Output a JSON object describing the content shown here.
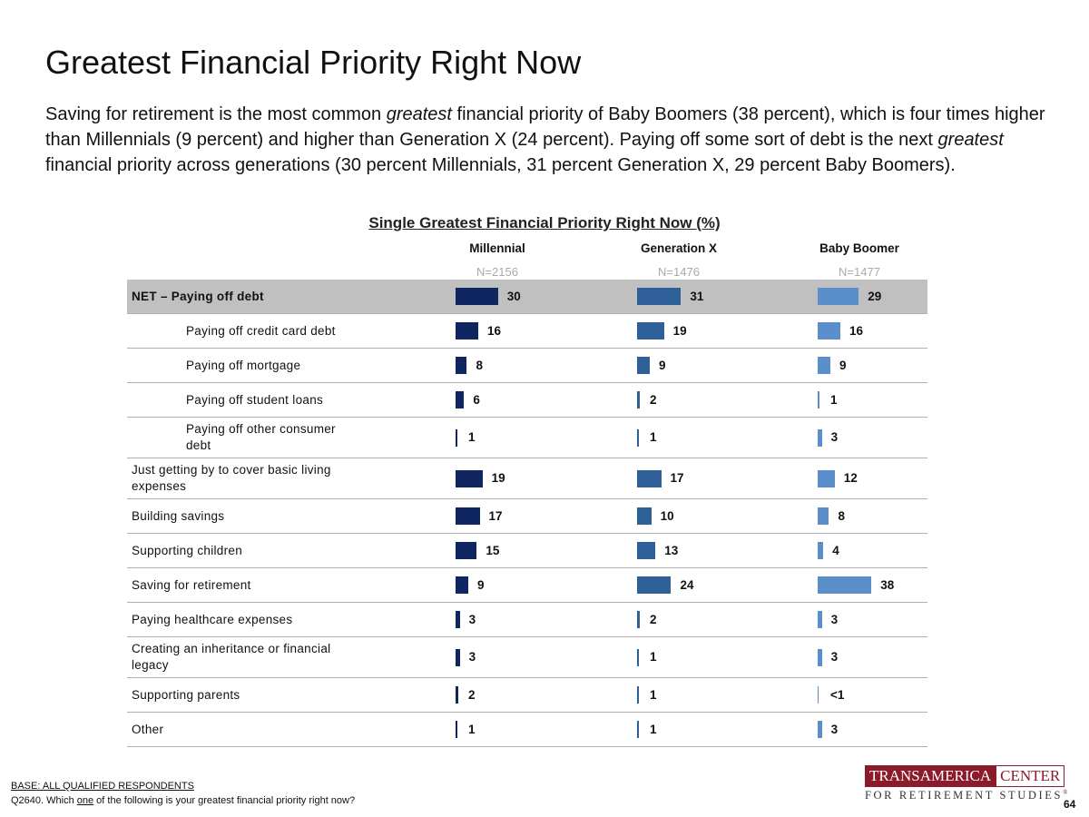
{
  "chart_data": {
    "type": "bar",
    "title": "Greatest Financial Priority Right Now",
    "description": [
      "Saving for retirement is the most common ",
      "greatest",
      " financial priority of Baby Boomers (38 percent), which is four times higher than Millennials (9 percent) and higher than Generation X (24 percent). Paying off some sort of debt is the next ",
      "greatest",
      " financial priority across generations (30 percent Millennials, 31 percent Generation X, 29 percent Baby Boomers)."
    ],
    "chart_title": "Single Greatest Financial Priority Right Now (%)",
    "categories": [
      "NET – Paying off debt",
      "Paying off credit card debt",
      "Paying off mortgage",
      "Paying off student loans",
      "Paying off other consumer debt",
      "Just getting by to cover basic living expenses",
      "Building savings",
      "Supporting children",
      "Saving for retirement",
      "Paying healthcare expenses",
      "Creating an inheritance or financial legacy",
      "Supporting parents",
      "Other"
    ],
    "indented": [
      false,
      true,
      true,
      true,
      true,
      false,
      false,
      false,
      false,
      false,
      false,
      false,
      false
    ],
    "highlight_row": 0,
    "series": [
      {
        "name": "Millennial",
        "sample": "N=2156",
        "color": "#0f2660",
        "values": [
          30,
          16,
          8,
          6,
          1,
          19,
          17,
          15,
          9,
          3,
          3,
          2,
          1
        ]
      },
      {
        "name": "Generation X",
        "sample": "N=1476",
        "color": "#2e5f99",
        "values": [
          31,
          19,
          9,
          2,
          1,
          17,
          10,
          13,
          24,
          2,
          1,
          1,
          1
        ]
      },
      {
        "name": "Baby Boomer",
        "sample": "N=1477",
        "color": "#5b8fcc",
        "values": [
          29,
          16,
          9,
          1,
          3,
          12,
          8,
          4,
          38,
          3,
          3,
          0.5,
          3
        ],
        "value_labels": [
          "29",
          "16",
          "9",
          "1",
          "3",
          "12",
          "8",
          "4",
          "38",
          "3",
          "3",
          "<1",
          "3"
        ]
      }
    ],
    "base_note": "BASE: ALL QUALIFIED RESPONDENTS",
    "question": [
      "Q2640. Which ",
      "one",
      " of the following is your greatest financial priority right now?"
    ],
    "logo": {
      "name": "TRANSAMERICA",
      "center": "CENTER",
      "tagline": "FOR RETIREMENT STUDIES",
      "mark": "®"
    },
    "page_number": "64"
  }
}
